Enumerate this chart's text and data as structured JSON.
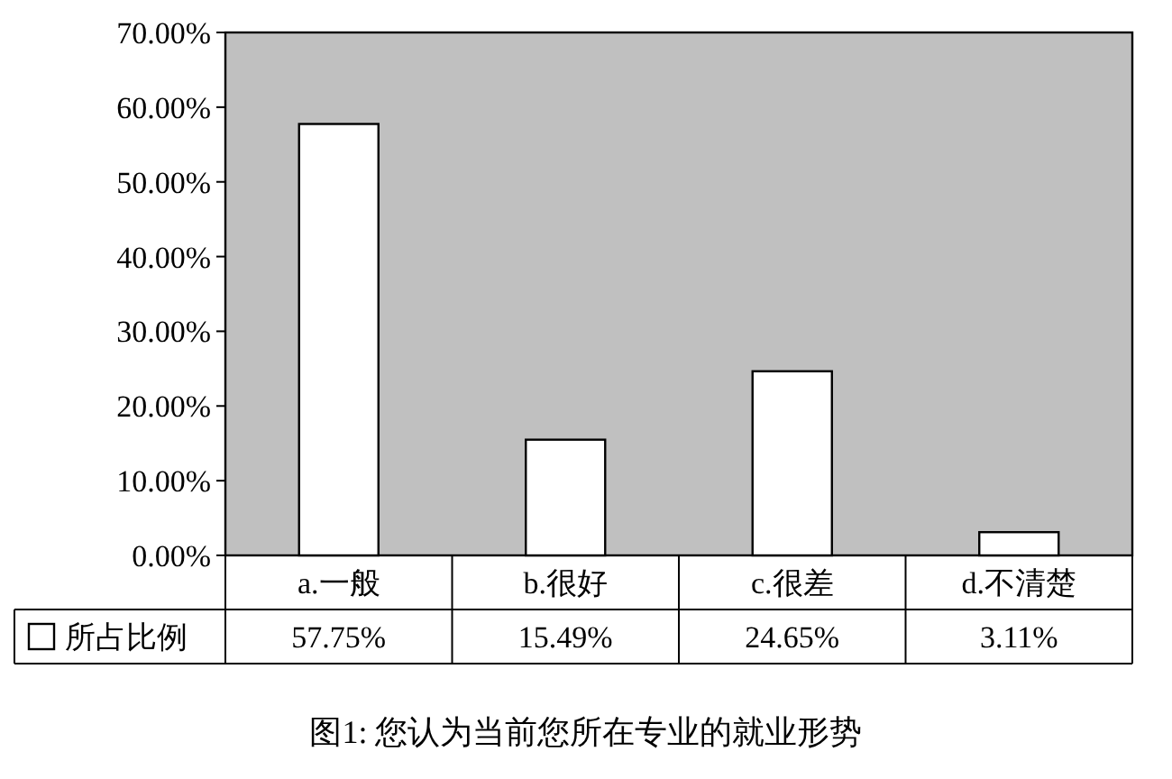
{
  "chart_data": {
    "type": "bar",
    "categories": [
      "a.一般",
      "b.很好",
      "c.很差",
      "d.不清楚"
    ],
    "series": [
      {
        "name": "所占比例",
        "color": "#ffffff",
        "values": [
          57.75,
          15.49,
          24.65,
          3.11
        ],
        "value_labels": [
          "57.75%",
          "15.49%",
          "24.65%",
          "3.11%"
        ]
      }
    ],
    "ylim": [
      0,
      70
    ],
    "yticks": [
      {
        "value": 0,
        "label": "0.00%"
      },
      {
        "value": 10,
        "label": "10.00%"
      },
      {
        "value": 20,
        "label": "20.00%"
      },
      {
        "value": 30,
        "label": "30.00%"
      },
      {
        "value": 40,
        "label": "40.00%"
      },
      {
        "value": 50,
        "label": "50.00%"
      },
      {
        "value": 60,
        "label": "60.00%"
      },
      {
        "value": 70,
        "label": "70.00%"
      }
    ],
    "grid": false,
    "legend": "bottom left",
    "annotations": [
      "图1: 您认为当前您所在专业的就业形势"
    ]
  }
}
